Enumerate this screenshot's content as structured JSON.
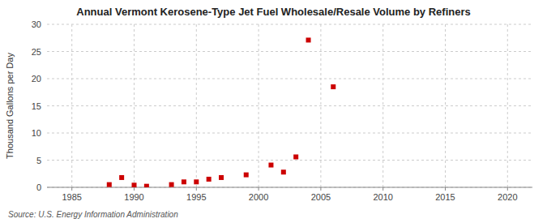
{
  "chart_data": {
    "type": "scatter",
    "title": "Annual Vermont Kerosene-Type Jet Fuel Wholesale/Resale Volume by Refiners",
    "ylabel": "Thousand Gallons per Day",
    "source": "Source: U.S. Energy Information Administration",
    "color": "#cc0000",
    "marker": "square",
    "grid": true,
    "xlim": [
      1983,
      2022
    ],
    "ylim": [
      0,
      30
    ],
    "xticks": [
      1985,
      1990,
      1995,
      2000,
      2005,
      2010,
      2015,
      2020
    ],
    "yticks": [
      0,
      5,
      10,
      15,
      20,
      25,
      30
    ],
    "x": [
      1988,
      1989,
      1990,
      1991,
      1993,
      1994,
      1995,
      1996,
      1997,
      1999,
      2001,
      2002,
      2003,
      2004,
      2006
    ],
    "values": [
      0.5,
      1.8,
      0.4,
      0.2,
      0.5,
      1.0,
      1.0,
      1.5,
      1.8,
      2.3,
      4.1,
      2.8,
      5.6,
      27.1,
      18.5
    ]
  }
}
